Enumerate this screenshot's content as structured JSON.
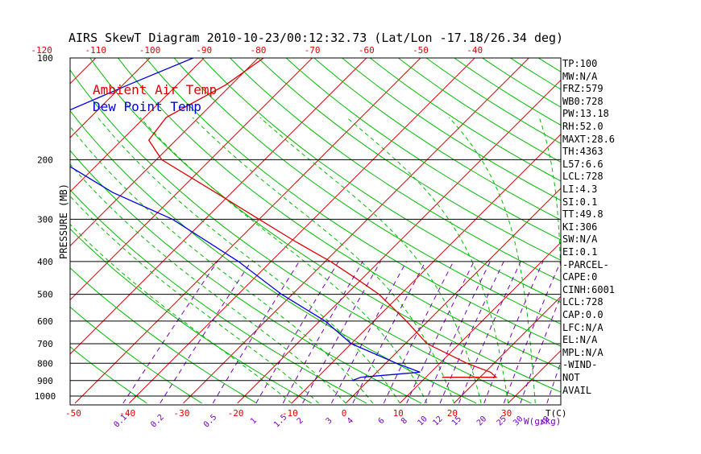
{
  "chart_data": {
    "type": "line",
    "title": "AIRS SkewT Diagram 2010-10-23/00:12:32.73 (Lat/Lon -17.18/26.34 deg)",
    "ylabel": "PRESSURE (MB)",
    "xlabel_temperature": "T(C)",
    "xlabel_mixing_ratio": "W(g/kg)",
    "y_scale": "log",
    "ylim": [
      100,
      1000
    ],
    "pressure_ticks": [
      100,
      200,
      300,
      400,
      500,
      600,
      700,
      800,
      900,
      1000
    ],
    "top_temperature_ticks": [
      -120,
      -110,
      -100,
      -90,
      -80,
      -70,
      -60,
      -50,
      -40
    ],
    "bottom_temperature_ticks": [
      -50,
      -40,
      -30,
      -20,
      -10,
      0,
      10,
      20,
      30
    ],
    "mixing_ratio_ticks": [
      "0.1",
      "0.2",
      "0.5",
      "1",
      "1.5",
      "2",
      "3",
      "4",
      "6",
      "8",
      "10",
      "12",
      "15",
      "20",
      "25",
      "30",
      "40"
    ],
    "legend": [
      "Ambient Air Temp",
      "Dew Point Temp"
    ],
    "legend_position": "top-left",
    "grid": true,
    "colors": {
      "air_temp": "#dd0000",
      "dew_point": "#0000dd",
      "isotherm": "#dd0000",
      "dry_adiabat": "#00bb00",
      "moist_adiabat": "#00bb00",
      "mixing_ratio": "#7700bb",
      "isobar": "#000000",
      "tick_label": "#dd0000",
      "mixing_label": "#7700bb"
    },
    "series": [
      {
        "name": "Ambient Air Temp",
        "points": [
          {
            "p": 100,
            "t": -79
          },
          {
            "p": 120,
            "t": -81
          },
          {
            "p": 150,
            "t": -86
          },
          {
            "p": 175,
            "t": -85
          },
          {
            "p": 200,
            "t": -79
          },
          {
            "p": 250,
            "t": -63
          },
          {
            "p": 300,
            "t": -50
          },
          {
            "p": 350,
            "t": -39
          },
          {
            "p": 400,
            "t": -29
          },
          {
            "p": 450,
            "t": -21
          },
          {
            "p": 500,
            "t": -14
          },
          {
            "p": 600,
            "t": -4
          },
          {
            "p": 700,
            "t": 4
          },
          {
            "p": 800,
            "t": 15
          },
          {
            "p": 850,
            "t": 21
          },
          {
            "p": 880,
            "t": 23
          },
          {
            "p": 880,
            "t": 13
          }
        ]
      },
      {
        "name": "Dew Point Temp",
        "points": [
          {
            "p": 100,
            "t": -92
          },
          {
            "p": 120,
            "t": -99
          },
          {
            "p": 150,
            "t": -107
          },
          {
            "p": 175,
            "t": -104
          },
          {
            "p": 200,
            "t": -98
          },
          {
            "p": 250,
            "t": -82
          },
          {
            "p": 300,
            "t": -66
          },
          {
            "p": 400,
            "t": -46
          },
          {
            "p": 500,
            "t": -32
          },
          {
            "p": 600,
            "t": -19
          },
          {
            "p": 700,
            "t": -10
          },
          {
            "p": 800,
            "t": 2
          },
          {
            "p": 850,
            "t": 8
          },
          {
            "p": 880,
            "t": -2
          },
          {
            "p": 900,
            "t": -3
          }
        ]
      }
    ]
  },
  "indices": [
    "TP:100",
    "MW:N/A",
    "FRZ:579",
    "WB0:728",
    "PW:13.18",
    "RH:52.0",
    "MAXT:28.6",
    "TH:4363",
    "L57:6.6",
    "LCL:728",
    "LI:4.3",
    "SI:0.1",
    "TT:49.8",
    "KI:306",
    "SW:N/A",
    "EI:0.1",
    "-PARCEL-",
    "CAPE:0",
    "CINH:6001",
    "LCL:728",
    "CAP:0.0",
    "LFC:N/A",
    "EL:N/A",
    "MPL:N/A",
    "-WIND-",
    "NOT",
    "AVAIL"
  ]
}
